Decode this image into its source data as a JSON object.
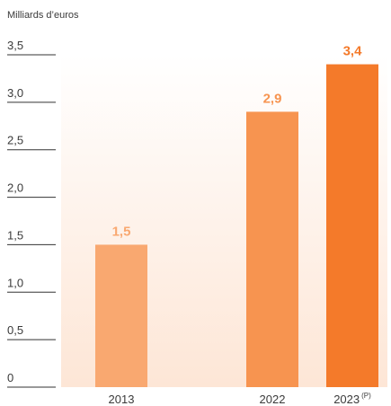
{
  "chart_data": {
    "type": "bar",
    "unit_label": "Milliards d’euros",
    "categories": [
      "2013",
      "2022",
      "2023"
    ],
    "category_notes": [
      "",
      "",
      "(P)"
    ],
    "values": [
      1.5,
      2.9,
      3.4
    ],
    "value_labels": [
      "1,5",
      "2,9",
      "3,4"
    ],
    "ylim": [
      0,
      3.5
    ],
    "yticks": [
      0,
      0.5,
      1.0,
      1.5,
      2.0,
      2.5,
      3.0,
      3.5
    ],
    "ytick_labels": [
      "0",
      "0,5",
      "1,0",
      "1,5",
      "2,0",
      "2,5",
      "3,0",
      "3,5"
    ],
    "bar_colors": [
      "#f9a870",
      "#f79450",
      "#f47a2a"
    ],
    "label_colors": [
      "#f9a870",
      "#f79450",
      "#f47a2a"
    ],
    "background_gradient": [
      "#fde6d6",
      "#ffffff"
    ],
    "grid": "short lines left of the plot area",
    "legend": "none"
  }
}
